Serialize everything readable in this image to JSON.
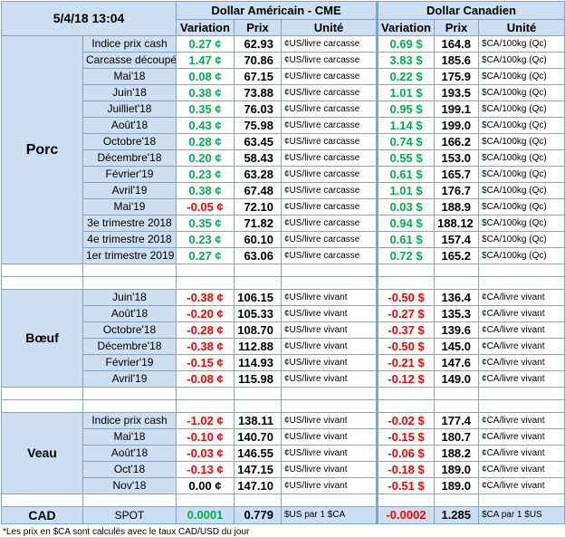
{
  "header": {
    "datetime": "5/4/18 13:04",
    "usd_title": "Dollar Américain - CME",
    "cad_title": "Dollar Canadien",
    "col_variation": "Variation",
    "col_prix": "Prix",
    "col_unite": "Unité"
  },
  "sections": [
    {
      "name": "Porc",
      "rows": [
        {
          "label": "Indice prix cash",
          "usd_var": "0.27 ¢",
          "usd_dir": "pos",
          "usd_price": "62.93",
          "usd_unit": "¢US/livre carcasse",
          "cad_var": "0.69 $",
          "cad_dir": "pos",
          "cad_price": "164.8",
          "cad_unit": "$CA/100kg (Qc)"
        },
        {
          "label": "Carcasse découpée",
          "usd_var": "1.47 ¢",
          "usd_dir": "pos",
          "usd_price": "70.86",
          "usd_unit": "¢US/livre carcasse",
          "cad_var": "3.83 $",
          "cad_dir": "pos",
          "cad_price": "185.6",
          "cad_unit": "$CA/100kg (Qc)"
        },
        {
          "label": "Mai'18",
          "usd_var": "0.08 ¢",
          "usd_dir": "pos",
          "usd_price": "67.15",
          "usd_unit": "¢US/livre carcasse",
          "cad_var": "0.22 $",
          "cad_dir": "pos",
          "cad_price": "175.9",
          "cad_unit": "$CA/100kg (Qc)"
        },
        {
          "label": "Juin'18",
          "usd_var": "0.38 ¢",
          "usd_dir": "pos",
          "usd_price": "73.88",
          "usd_unit": "¢US/livre carcasse",
          "cad_var": "1.01 $",
          "cad_dir": "pos",
          "cad_price": "193.5",
          "cad_unit": "$CA/100kg (Qc)"
        },
        {
          "label": "Juilliet'18",
          "usd_var": "0.35 ¢",
          "usd_dir": "pos",
          "usd_price": "76.03",
          "usd_unit": "¢US/livre carcasse",
          "cad_var": "0.95 $",
          "cad_dir": "pos",
          "cad_price": "199.1",
          "cad_unit": "$CA/100kg (Qc)"
        },
        {
          "label": "Août'18",
          "usd_var": "0.43 ¢",
          "usd_dir": "pos",
          "usd_price": "75.98",
          "usd_unit": "¢US/livre carcasse",
          "cad_var": "1.14 $",
          "cad_dir": "pos",
          "cad_price": "199.0",
          "cad_unit": "$CA/100kg (Qc)"
        },
        {
          "label": "Octobre'18",
          "usd_var": "0.28 ¢",
          "usd_dir": "pos",
          "usd_price": "63.45",
          "usd_unit": "¢US/livre carcasse",
          "cad_var": "0.74 $",
          "cad_dir": "pos",
          "cad_price": "166.2",
          "cad_unit": "$CA/100kg (Qc)"
        },
        {
          "label": "Décembre'18",
          "usd_var": "0.20 ¢",
          "usd_dir": "pos",
          "usd_price": "58.43",
          "usd_unit": "¢US/livre carcasse",
          "cad_var": "0.55 $",
          "cad_dir": "pos",
          "cad_price": "153.0",
          "cad_unit": "$CA/100kg (Qc)"
        },
        {
          "label": "Février'19",
          "usd_var": "0.23 ¢",
          "usd_dir": "pos",
          "usd_price": "63.28",
          "usd_unit": "¢US/livre carcasse",
          "cad_var": "0.61 $",
          "cad_dir": "pos",
          "cad_price": "165.7",
          "cad_unit": "$CA/100kg (Qc)"
        },
        {
          "label": "Avril'19",
          "usd_var": "0.38 ¢",
          "usd_dir": "pos",
          "usd_price": "67.48",
          "usd_unit": "¢US/livre carcasse",
          "cad_var": "1.01 $",
          "cad_dir": "pos",
          "cad_price": "176.7",
          "cad_unit": "$CA/100kg (Qc)"
        },
        {
          "label": "Mai'19",
          "usd_var": "-0.05 ¢",
          "usd_dir": "neg",
          "usd_price": "72.10",
          "usd_unit": "¢US/livre carcasse",
          "cad_var": "0.03 $",
          "cad_dir": "pos",
          "cad_price": "188.9",
          "cad_unit": "$CA/100kg (Qc)"
        },
        {
          "label": "3e trimestre 2018",
          "usd_var": "0.35 ¢",
          "usd_dir": "pos",
          "usd_price": "71.82",
          "usd_unit": "¢US/livre carcasse",
          "cad_var": "0.94 $",
          "cad_dir": "pos",
          "cad_price": "188.12",
          "cad_unit": "$CA/100kg (Qc)"
        },
        {
          "label": "4e trimestre 2018",
          "usd_var": "0.23 ¢",
          "usd_dir": "pos",
          "usd_price": "60.10",
          "usd_unit": "¢US/livre carcasse",
          "cad_var": "0.61 $",
          "cad_dir": "pos",
          "cad_price": "157.4",
          "cad_unit": "$CA/100kg (Qc)"
        },
        {
          "label": "1er trimestre 2019",
          "usd_var": "0.27 ¢",
          "usd_dir": "pos",
          "usd_price": "63.06",
          "usd_unit": "¢US/livre carcasse",
          "cad_var": "0.72 $",
          "cad_dir": "pos",
          "cad_price": "165.2",
          "cad_unit": "$CA/100kg (Qc)"
        }
      ]
    },
    {
      "name": "Bœuf",
      "rows": [
        {
          "label": "Juin'18",
          "usd_var": "-0.38 ¢",
          "usd_dir": "neg",
          "usd_price": "106.15",
          "usd_unit": "¢US/livre vivant",
          "cad_var": "-0.50 $",
          "cad_dir": "neg",
          "cad_price": "136.4",
          "cad_unit": "¢CA/livre vivant"
        },
        {
          "label": "Août'18",
          "usd_var": "-0.20 ¢",
          "usd_dir": "neg",
          "usd_price": "105.33",
          "usd_unit": "¢US/livre vivant",
          "cad_var": "-0.27 $",
          "cad_dir": "neg",
          "cad_price": "135.3",
          "cad_unit": "¢CA/livre vivant"
        },
        {
          "label": "Octobre'18",
          "usd_var": "-0.28 ¢",
          "usd_dir": "neg",
          "usd_price": "108.70",
          "usd_unit": "¢US/livre vivant",
          "cad_var": "-0.37 $",
          "cad_dir": "neg",
          "cad_price": "139.6",
          "cad_unit": "¢CA/livre vivant"
        },
        {
          "label": "Décembre'18",
          "usd_var": "-0.38 ¢",
          "usd_dir": "neg",
          "usd_price": "112.88",
          "usd_unit": "¢US/livre vivant",
          "cad_var": "-0.50 $",
          "cad_dir": "neg",
          "cad_price": "145.0",
          "cad_unit": "¢CA/livre vivant"
        },
        {
          "label": "Février'19",
          "usd_var": "-0.15 ¢",
          "usd_dir": "neg",
          "usd_price": "114.93",
          "usd_unit": "¢US/livre vivant",
          "cad_var": "-0.21 $",
          "cad_dir": "neg",
          "cad_price": "147.6",
          "cad_unit": "¢CA/livre vivant"
        },
        {
          "label": "Avril'19",
          "usd_var": "-0.08 ¢",
          "usd_dir": "neg",
          "usd_price": "115.98",
          "usd_unit": "¢US/livre vivant",
          "cad_var": "-0.12 $",
          "cad_dir": "neg",
          "cad_price": "149.0",
          "cad_unit": "¢CA/livre vivant"
        }
      ]
    },
    {
      "name": "Veau",
      "rows": [
        {
          "label": "Indice prix cash",
          "usd_var": "-1.02 ¢",
          "usd_dir": "neg",
          "usd_price": "138.11",
          "usd_unit": "¢US/livre vivant",
          "cad_var": "-0.02 $",
          "cad_dir": "neg",
          "cad_price": "177.4",
          "cad_unit": "¢CA/livre vivant"
        },
        {
          "label": "Mai'18",
          "usd_var": "-0.10 ¢",
          "usd_dir": "neg",
          "usd_price": "140.70",
          "usd_unit": "¢US/livre vivant",
          "cad_var": "-0.15 $",
          "cad_dir": "neg",
          "cad_price": "180.7",
          "cad_unit": "¢CA/livre vivant"
        },
        {
          "label": "Août'18",
          "usd_var": "-0.03 ¢",
          "usd_dir": "neg",
          "usd_price": "146.55",
          "usd_unit": "¢US/livre vivant",
          "cad_var": "-0.06 $",
          "cad_dir": "neg",
          "cad_price": "188.2",
          "cad_unit": "¢CA/livre vivant"
        },
        {
          "label": "Oct'18",
          "usd_var": "-0.13 ¢",
          "usd_dir": "neg",
          "usd_price": "147.15",
          "usd_unit": "¢US/livre vivant",
          "cad_var": "-0.18 $",
          "cad_dir": "neg",
          "cad_price": "189.0",
          "cad_unit": "¢CA/livre vivant"
        },
        {
          "label": "Nov'18",
          "usd_var": "0.00 ¢",
          "usd_dir": "zero",
          "usd_price": "147.10",
          "usd_unit": "¢US/livre vivant",
          "cad_var": "-0.51 $",
          "cad_dir": "neg",
          "cad_price": "189.0",
          "cad_unit": "¢CA/livre vivant"
        }
      ]
    }
  ],
  "cad": {
    "name": "CAD",
    "label": "SPOT",
    "usd_var": "0.0001",
    "usd_dir": "pos",
    "usd_price": "0.779",
    "usd_unit": "$US par 1 $CA",
    "cad_var": "-0.0002",
    "cad_dir": "neg",
    "cad_price": "1.285",
    "cad_unit": "$CA par 1 $US"
  },
  "footnote": "*Les  prix en $CA sont calculés avec le taux CAD/USD du jour",
  "colors": {
    "header_bg": "#ccdeef",
    "border": "#7ea6c8",
    "positive": "#00b050",
    "negative": "#ff0000"
  }
}
